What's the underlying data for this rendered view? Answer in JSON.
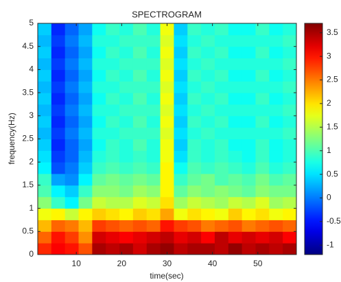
{
  "chart_data": {
    "type": "heatmap",
    "title": "SPECTROGRAM",
    "xlabel": "time(sec)",
    "ylabel": "frequency(Hz)",
    "colormap": "jet",
    "x": [
      3,
      6,
      9,
      12,
      15,
      18,
      21,
      24,
      27,
      30,
      33,
      36,
      39,
      42,
      45,
      48,
      51,
      54,
      57
    ],
    "y": [
      0.125,
      0.375,
      0.625,
      0.875,
      1.125,
      1.375,
      1.625,
      1.875,
      2.125,
      2.375,
      2.625,
      2.875,
      3.125,
      3.375,
      3.625,
      3.875,
      4.125,
      4.375,
      4.625,
      4.875
    ],
    "z": [
      [
        2.9,
        3.1,
        3.0,
        2.7,
        3.5,
        3.4,
        3.5,
        3.3,
        3.5,
        3.6,
        3.4,
        3.5,
        3.5,
        3.4,
        3.6,
        3.4,
        3.5,
        3.4,
        3.5
      ],
      [
        2.6,
        3.0,
        2.8,
        2.4,
        3.3,
        3.2,
        3.1,
        3.2,
        3.3,
        3.4,
        3.2,
        3.3,
        3.1,
        3.4,
        3.2,
        3.3,
        3.2,
        3.3,
        3.1
      ],
      [
        2.2,
        2.6,
        2.5,
        2.2,
        2.8,
        2.7,
        2.6,
        2.7,
        2.6,
        3.0,
        2.8,
        2.7,
        2.5,
        2.6,
        2.7,
        2.5,
        2.6,
        2.7,
        2.6
      ],
      [
        1.8,
        1.9,
        1.6,
        1.9,
        2.1,
        2.0,
        1.9,
        2.1,
        2.0,
        2.3,
        1.8,
        2.0,
        1.9,
        1.8,
        2.1,
        1.9,
        2.0,
        1.8,
        1.9
      ],
      [
        1.3,
        0.9,
        0.6,
        1.2,
        1.6,
        1.5,
        1.5,
        1.7,
        1.6,
        2.0,
        1.4,
        1.6,
        1.5,
        1.4,
        1.6,
        1.5,
        1.7,
        1.4,
        1.5
      ],
      [
        1.0,
        0.6,
        0.4,
        0.9,
        1.3,
        1.3,
        1.2,
        1.4,
        1.3,
        1.9,
        1.1,
        1.3,
        1.2,
        1.3,
        1.2,
        1.1,
        1.3,
        1.2,
        1.2
      ],
      [
        0.9,
        0.2,
        0.1,
        0.6,
        1.1,
        1.2,
        1.1,
        1.2,
        1.1,
        1.9,
        0.9,
        1.1,
        1.2,
        1.0,
        1.1,
        1.0,
        1.2,
        1.0,
        1.1
      ],
      [
        0.6,
        -0.2,
        0.0,
        0.4,
        0.9,
        1.0,
        0.9,
        1.0,
        0.9,
        1.9,
        0.7,
        1.0,
        0.9,
        1.0,
        0.9,
        0.8,
        1.0,
        0.8,
        0.9
      ],
      [
        0.5,
        -0.3,
        -0.1,
        0.3,
        0.8,
        0.9,
        0.8,
        0.9,
        0.8,
        1.8,
        0.5,
        0.9,
        0.8,
        0.9,
        0.8,
        0.7,
        0.9,
        0.7,
        0.8
      ],
      [
        0.4,
        -0.4,
        -0.1,
        0.2,
        0.7,
        0.9,
        0.8,
        1.0,
        0.8,
        1.8,
        0.4,
        0.9,
        0.8,
        0.9,
        0.7,
        0.7,
        0.9,
        0.7,
        0.8
      ],
      [
        0.3,
        -0.3,
        0.0,
        0.3,
        0.8,
        0.8,
        0.9,
        0.9,
        0.9,
        1.7,
        0.5,
        0.8,
        0.9,
        0.8,
        0.8,
        0.8,
        0.8,
        0.8,
        0.9
      ],
      [
        0.4,
        -0.4,
        -0.1,
        0.2,
        0.7,
        0.9,
        0.8,
        1.0,
        0.8,
        1.8,
        0.4,
        0.9,
        0.8,
        0.9,
        0.7,
        0.7,
        0.9,
        0.7,
        0.8
      ],
      [
        0.3,
        -0.3,
        0.0,
        0.3,
        0.8,
        0.8,
        0.9,
        0.9,
        0.9,
        1.7,
        0.5,
        0.8,
        0.9,
        0.8,
        0.8,
        0.8,
        0.8,
        0.8,
        0.9
      ],
      [
        0.4,
        -0.4,
        -0.1,
        0.2,
        0.7,
        0.9,
        0.8,
        1.0,
        0.8,
        1.8,
        0.4,
        0.9,
        0.8,
        0.9,
        0.7,
        0.7,
        0.9,
        0.7,
        0.8
      ],
      [
        0.3,
        -0.3,
        0.0,
        0.3,
        0.8,
        0.8,
        0.9,
        0.9,
        0.9,
        1.7,
        0.5,
        0.8,
        0.9,
        0.8,
        0.8,
        0.8,
        0.8,
        0.8,
        0.9
      ],
      [
        0.4,
        -0.4,
        -0.1,
        0.2,
        0.7,
        0.9,
        0.8,
        1.0,
        0.8,
        1.8,
        0.4,
        0.9,
        0.8,
        0.9,
        0.7,
        0.7,
        0.9,
        0.7,
        0.8
      ],
      [
        0.3,
        -0.3,
        0.0,
        0.3,
        0.8,
        0.8,
        0.9,
        0.9,
        0.9,
        1.7,
        0.5,
        0.8,
        0.9,
        0.8,
        0.8,
        0.8,
        0.8,
        0.8,
        0.9
      ],
      [
        0.4,
        -0.4,
        -0.1,
        0.2,
        0.7,
        0.9,
        0.8,
        1.0,
        0.8,
        1.8,
        0.4,
        0.9,
        0.8,
        0.9,
        0.7,
        0.7,
        0.9,
        0.7,
        0.8
      ],
      [
        0.3,
        -0.3,
        0.0,
        0.3,
        0.8,
        0.8,
        0.9,
        0.9,
        0.9,
        1.7,
        0.5,
        0.8,
        0.9,
        0.8,
        0.8,
        0.8,
        0.8,
        0.8,
        0.9
      ],
      [
        0.4,
        -0.4,
        -0.1,
        0.2,
        0.7,
        0.9,
        0.8,
        1.0,
        0.8,
        1.8,
        0.4,
        0.9,
        0.8,
        0.9,
        0.7,
        0.7,
        0.9,
        0.7,
        0.8
      ]
    ],
    "xlim": [
      1.5,
      58.5
    ],
    "ylim": [
      0,
      5
    ],
    "xticks": [
      10,
      20,
      30,
      40,
      50
    ],
    "yticks": [
      0,
      0.5,
      1,
      1.5,
      2,
      2.5,
      3,
      3.5,
      4,
      4.5,
      5
    ],
    "clim": [
      -1.2,
      3.7
    ],
    "cticks": [
      -1,
      -0.5,
      0,
      0.5,
      1,
      1.5,
      2,
      2.5,
      3,
      3.5
    ]
  }
}
